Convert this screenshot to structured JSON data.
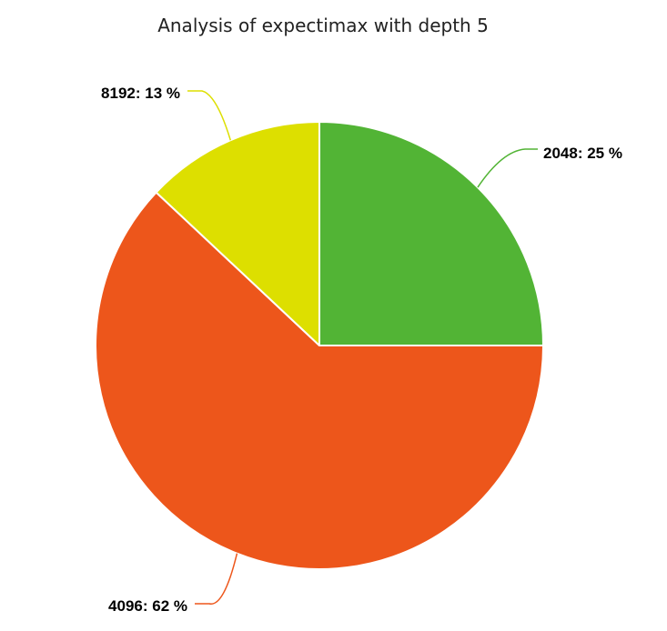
{
  "chart_data": {
    "type": "pie",
    "title": "Analysis of expectimax with depth 5",
    "slices": [
      {
        "category": "2048",
        "percent": 25,
        "label": "2048: 25 %",
        "color": "#52b435"
      },
      {
        "category": "4096",
        "percent": 62,
        "label": "4096: 62 %",
        "color": "#ed561b"
      },
      {
        "category": "8192",
        "percent": 13,
        "label": "8192: 13 %",
        "color": "#dddf00"
      }
    ],
    "legend": "none"
  }
}
